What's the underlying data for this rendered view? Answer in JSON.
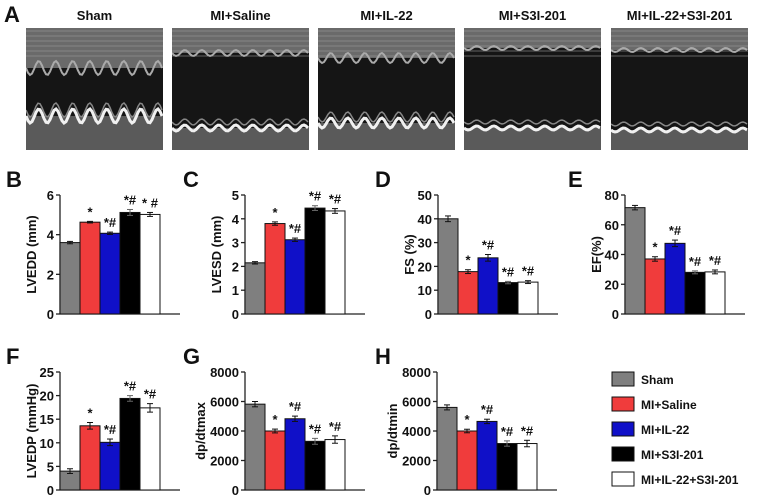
{
  "panel_a": {
    "letter": "A",
    "groups": [
      "Sham",
      "MI+Saline",
      "MI+IL-22",
      "MI+S3I-201",
      "MI+IL-22+S3I-201"
    ]
  },
  "legend": {
    "entries": [
      {
        "label": "Sham",
        "color": "#7f7f7f"
      },
      {
        "label": "MI+Saline",
        "color": "#f03c3c"
      },
      {
        "label": "MI+IL-22",
        "color": "#1010c8"
      },
      {
        "label": "MI+S3I-201",
        "color": "#000000"
      },
      {
        "label": "MI+IL-22+S3I-201",
        "color": "#ffffff"
      }
    ]
  },
  "chart_data": [
    {
      "letter": "B",
      "type": "bar",
      "ylabel": "LVEDD (mm)",
      "ylim": [
        0,
        6
      ],
      "yticks": [
        0,
        2,
        4,
        6
      ],
      "values": [
        3.6,
        4.63,
        4.07,
        5.12,
        5.02
      ],
      "errors": [
        0.06,
        0.04,
        0.06,
        0.15,
        0.1
      ],
      "annotations": [
        "",
        "*",
        "*#",
        "*#",
        "* #"
      ]
    },
    {
      "letter": "C",
      "type": "bar",
      "ylabel": "LVESD (mm)",
      "ylim": [
        0,
        5
      ],
      "yticks": [
        0,
        1,
        2,
        3,
        4,
        5
      ],
      "values": [
        2.15,
        3.8,
        3.12,
        4.45,
        4.33
      ],
      "errors": [
        0.05,
        0.07,
        0.07,
        0.1,
        0.1
      ],
      "annotations": [
        "",
        "*",
        "*#",
        "*#",
        "*#"
      ]
    },
    {
      "letter": "D",
      "type": "bar",
      "ylabel": "FS (%)",
      "ylim": [
        0,
        50
      ],
      "yticks": [
        0,
        10,
        20,
        30,
        40,
        50
      ],
      "values": [
        40,
        17.8,
        23.6,
        13.2,
        13.4
      ],
      "errors": [
        1.2,
        0.8,
        1.4,
        0.5,
        0.6
      ],
      "annotations": [
        "",
        "*",
        "*#",
        "*#",
        "*#"
      ]
    },
    {
      "letter": "E",
      "type": "bar",
      "ylabel": "EF(%)",
      "ylim": [
        0,
        80
      ],
      "yticks": [
        0,
        20,
        40,
        60,
        80
      ],
      "values": [
        71.5,
        37,
        47.5,
        28,
        28.3
      ],
      "errors": [
        1.5,
        1.5,
        2.2,
        1.0,
        1.3
      ],
      "annotations": [
        "",
        "*",
        "*#",
        "*#",
        "*#"
      ]
    },
    {
      "letter": "F",
      "type": "bar",
      "ylabel": "LVEDP (mmHg)",
      "ylim": [
        0,
        25
      ],
      "yticks": [
        0,
        5,
        10,
        15,
        20,
        25
      ],
      "values": [
        4.0,
        13.6,
        10.1,
        19.4,
        17.4
      ],
      "errors": [
        0.5,
        0.7,
        0.7,
        0.6,
        0.9
      ],
      "annotations": [
        "",
        "*",
        "*#",
        "*#",
        "*#"
      ]
    },
    {
      "letter": "G",
      "type": "bar",
      "ylabel": "dp/dtmax",
      "ylim": [
        0,
        8000
      ],
      "yticks": [
        0,
        2000,
        4000,
        6000,
        8000
      ],
      "values": [
        5820,
        4000,
        4830,
        3300,
        3420
      ],
      "errors": [
        180,
        130,
        180,
        200,
        250
      ],
      "annotations": [
        "",
        "*",
        "*#",
        "*#",
        "*#"
      ]
    },
    {
      "letter": "H",
      "type": "bar",
      "ylabel": "dp/dtmin",
      "ylim": [
        0,
        8000
      ],
      "yticks": [
        0,
        2000,
        4000,
        6000,
        8000
      ],
      "values": [
        5600,
        4000,
        4650,
        3150,
        3150
      ],
      "errors": [
        170,
        120,
        150,
        180,
        220
      ],
      "annotations": [
        "",
        "*",
        "*#",
        "*#",
        "*#"
      ]
    }
  ]
}
